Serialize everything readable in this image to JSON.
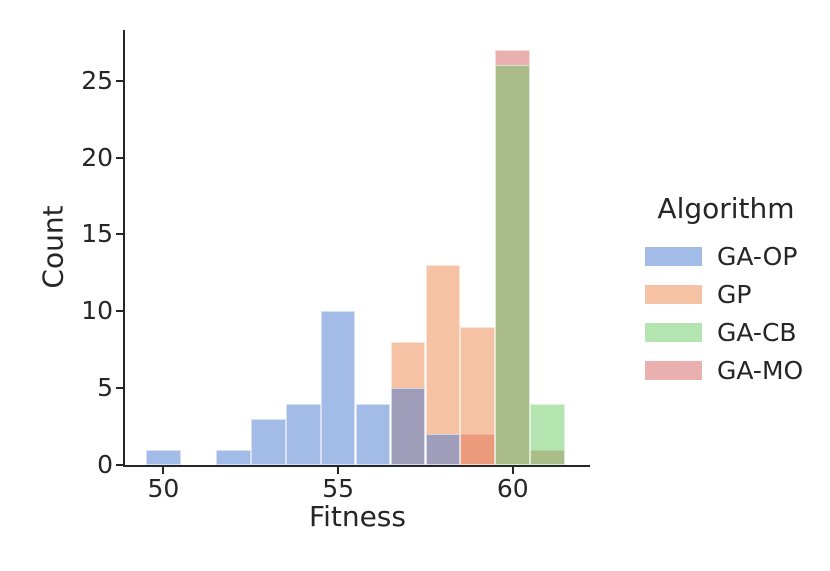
{
  "figure": {
    "background": "#ffffff",
    "text_color": "#262626"
  },
  "chart_data": {
    "type": "bar",
    "subtype": "layered-histogram",
    "title": "",
    "xlabel": "Fitness",
    "ylabel": "Count",
    "legend_title": "Algorithm",
    "legend_position": "center-right",
    "grid": false,
    "bar_opacity": 0.5,
    "bin_width": 1,
    "xlim": [
      48.9,
      62.21
    ],
    "ylim": [
      0,
      28.3
    ],
    "xticks": [
      50,
      55,
      60
    ],
    "yticks": [
      0,
      5,
      10,
      15,
      20,
      25
    ],
    "series": [
      {
        "name": "GA-OP",
        "color": "#4878d0",
        "bins": [
          {
            "x": 50,
            "count": 1
          },
          {
            "x": 52,
            "count": 1
          },
          {
            "x": 53,
            "count": 3
          },
          {
            "x": 54,
            "count": 4
          },
          {
            "x": 55,
            "count": 10
          },
          {
            "x": 56,
            "count": 4
          },
          {
            "x": 57,
            "count": 5
          },
          {
            "x": 58,
            "count": 2
          }
        ]
      },
      {
        "name": "GP",
        "color": "#ee854a",
        "bins": [
          {
            "x": 57,
            "count": 8
          },
          {
            "x": 58,
            "count": 13
          },
          {
            "x": 59,
            "count": 9
          }
        ]
      },
      {
        "name": "GA-CB",
        "color": "#6acc64",
        "bins": [
          {
            "x": 60,
            "count": 26
          },
          {
            "x": 61,
            "count": 4
          }
        ]
      },
      {
        "name": "GA-MO",
        "color": "#d65f5f",
        "bins": [
          {
            "x": 59,
            "count": 2
          },
          {
            "x": 60,
            "count": 27
          },
          {
            "x": 61,
            "count": 1
          }
        ]
      }
    ],
    "draw_order": [
      "GA-MO",
      "GA-CB",
      "GP",
      "GA-OP"
    ]
  }
}
